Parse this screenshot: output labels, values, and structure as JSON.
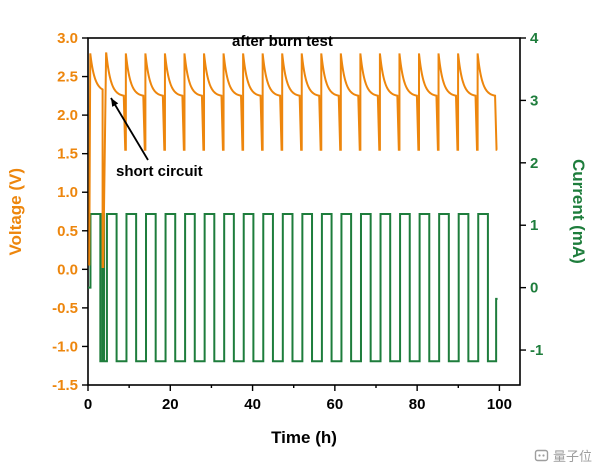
{
  "chart_data": {
    "type": "line",
    "title": "",
    "xlabel": "Time (h)",
    "ylabel_left": "Voltage (V)",
    "ylabel_right": "Current (mA)",
    "x_range": [
      0,
      105
    ],
    "x_ticks": [
      0,
      20,
      40,
      60,
      80,
      100
    ],
    "x_minor_ticks": [
      10,
      30,
      50,
      70,
      90
    ],
    "y_left_range": [
      -1.5,
      3.0
    ],
    "y_left_ticks": [
      3.0,
      2.5,
      2.0,
      1.5,
      1.0,
      0.5,
      0.0,
      -0.5,
      -1.0,
      -1.5
    ],
    "y_left_tick_labels": [
      "3.0",
      "2.5",
      "2.0",
      "1.5",
      "1.0",
      "0.5",
      "0.0",
      "-0.5",
      "-1.0",
      "-1.5"
    ],
    "y_right_range": [
      -1.56,
      4.0
    ],
    "y_right_ticks": [
      4,
      3,
      2,
      1,
      0,
      -1
    ],
    "y_right_tick_labels": [
      "4",
      "3",
      "2",
      "1",
      "0",
      "-1"
    ],
    "grid": false,
    "legend": "none",
    "colors": {
      "voltage": "#ED860D",
      "current": "#1E7D3C",
      "axis": "#000000"
    },
    "annotations": {
      "after_burn_test": "after burn test",
      "short_circuit": "short circuit"
    },
    "series": [
      {
        "name": "voltage",
        "axis": "left",
        "unit": "V",
        "waveform": {
          "kind": "charge_discharge_cycles",
          "initial_points": [
            [
              0.3,
              0.05
            ],
            [
              0.55,
              2.8
            ]
          ],
          "pre_short_decay": {
            "t_start": 0.55,
            "t_end": 3.55,
            "v_start": 2.8,
            "v_inf": 2.3,
            "tau": 1.1
          },
          "short_circuit": {
            "t_drop": 3.55,
            "v_low": 0.03,
            "t_recover": 4.4
          },
          "cycles": {
            "first_peak_t": 4.45,
            "period": 4.75,
            "count": 20,
            "v_peak": 2.8,
            "v_plateau": 2.24,
            "tau": 1.1,
            "decay_dur": 4.3,
            "drop_dur": 0.3,
            "v_min": 1.55
          },
          "t_end": 99.6
        }
      },
      {
        "name": "current",
        "axis": "right",
        "unit": "mA",
        "waveform": {
          "kind": "square",
          "head_points": [
            [
              0,
              0
            ],
            [
              0.6,
              0
            ],
            [
              0.6,
              1.18
            ],
            [
              3.0,
              1.18
            ],
            [
              3.0,
              -1.18
            ],
            [
              3.5,
              -1.18
            ],
            [
              3.5,
              1.18
            ],
            [
              3.9,
              1.18
            ],
            [
              3.9,
              -1.18
            ],
            [
              4.6,
              -1.18
            ]
          ],
          "cycles": {
            "t_start": 4.6,
            "period": 4.75,
            "up_dur": 2.35,
            "high": 1.18,
            "low": -1.18,
            "count": 20
          },
          "tail_points": [
            [
              99.2,
              -1.18
            ],
            [
              99.2,
              -0.18
            ],
            [
              99.55,
              -0.18
            ]
          ]
        }
      }
    ]
  },
  "watermark": {
    "text": "量子位"
  }
}
